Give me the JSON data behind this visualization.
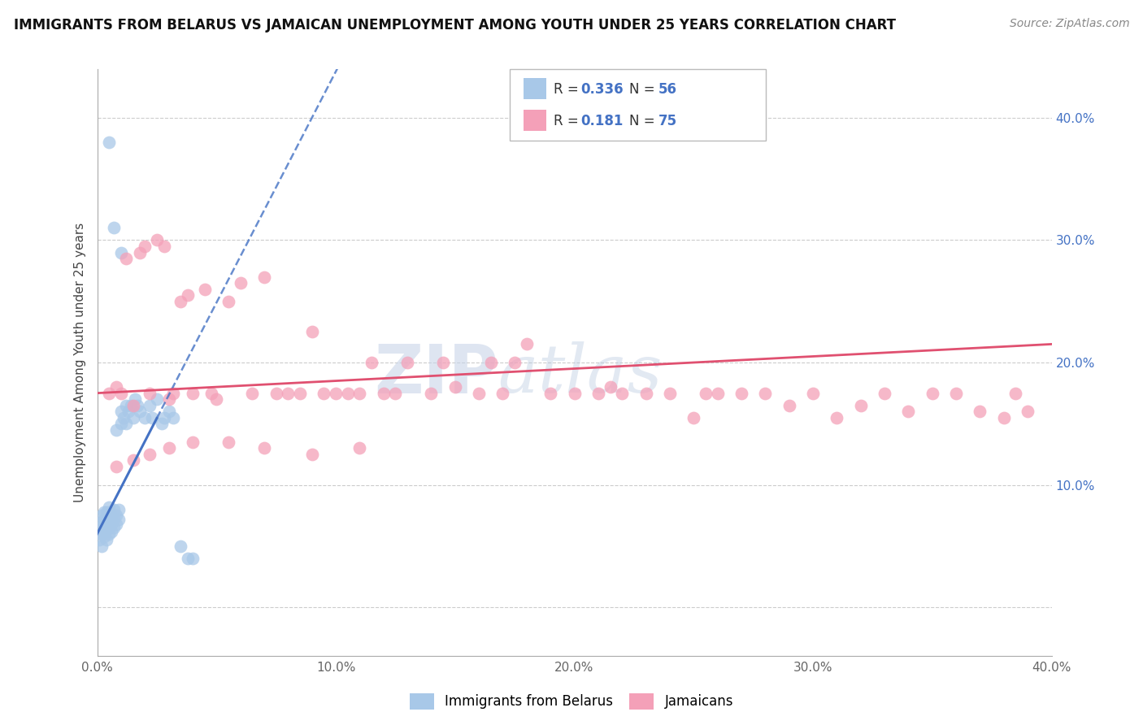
{
  "title": "IMMIGRANTS FROM BELARUS VS JAMAICAN UNEMPLOYMENT AMONG YOUTH UNDER 25 YEARS CORRELATION CHART",
  "source": "Source: ZipAtlas.com",
  "ylabel": "Unemployment Among Youth under 25 years",
  "xlim": [
    0.0,
    0.4
  ],
  "ylim": [
    -0.04,
    0.44
  ],
  "color_blue": "#a8c8e8",
  "color_pink": "#f4a0b8",
  "color_blue_line": "#4472c4",
  "color_pink_line": "#e05070",
  "watermark_zip": "ZIP",
  "watermark_atlas": "atlas",
  "belarus_x": [
    0.001,
    0.001,
    0.002,
    0.002,
    0.002,
    0.002,
    0.003,
    0.003,
    0.003,
    0.003,
    0.003,
    0.004,
    0.004,
    0.004,
    0.004,
    0.005,
    0.005,
    0.005,
    0.005,
    0.005,
    0.006,
    0.006,
    0.006,
    0.007,
    0.007,
    0.007,
    0.008,
    0.008,
    0.008,
    0.009,
    0.009,
    0.01,
    0.01,
    0.011,
    0.012,
    0.012,
    0.013,
    0.014,
    0.015,
    0.016,
    0.017,
    0.018,
    0.02,
    0.022,
    0.023,
    0.025,
    0.027,
    0.028,
    0.03,
    0.032,
    0.035,
    0.038,
    0.04,
    0.005,
    0.007,
    0.01
  ],
  "belarus_y": [
    0.055,
    0.065,
    0.06,
    0.07,
    0.075,
    0.05,
    0.058,
    0.062,
    0.068,
    0.072,
    0.078,
    0.055,
    0.063,
    0.07,
    0.078,
    0.06,
    0.065,
    0.07,
    0.078,
    0.082,
    0.062,
    0.068,
    0.075,
    0.065,
    0.072,
    0.08,
    0.068,
    0.075,
    0.145,
    0.072,
    0.08,
    0.15,
    0.16,
    0.155,
    0.165,
    0.15,
    0.16,
    0.165,
    0.155,
    0.17,
    0.165,
    0.16,
    0.155,
    0.165,
    0.155,
    0.17,
    0.15,
    0.155,
    0.16,
    0.155,
    0.05,
    0.04,
    0.04,
    0.38,
    0.31,
    0.29
  ],
  "jamaican_x": [
    0.005,
    0.008,
    0.01,
    0.012,
    0.015,
    0.018,
    0.02,
    0.022,
    0.025,
    0.028,
    0.03,
    0.032,
    0.035,
    0.038,
    0.04,
    0.045,
    0.048,
    0.05,
    0.055,
    0.06,
    0.065,
    0.07,
    0.075,
    0.08,
    0.085,
    0.09,
    0.095,
    0.1,
    0.105,
    0.11,
    0.115,
    0.12,
    0.125,
    0.13,
    0.14,
    0.145,
    0.15,
    0.16,
    0.165,
    0.17,
    0.175,
    0.18,
    0.19,
    0.2,
    0.21,
    0.215,
    0.22,
    0.23,
    0.24,
    0.25,
    0.255,
    0.26,
    0.27,
    0.28,
    0.29,
    0.3,
    0.31,
    0.32,
    0.33,
    0.34,
    0.35,
    0.36,
    0.37,
    0.38,
    0.385,
    0.39,
    0.008,
    0.015,
    0.022,
    0.03,
    0.04,
    0.055,
    0.07,
    0.09,
    0.11
  ],
  "jamaican_y": [
    0.175,
    0.18,
    0.175,
    0.285,
    0.165,
    0.29,
    0.295,
    0.175,
    0.3,
    0.295,
    0.17,
    0.175,
    0.25,
    0.255,
    0.175,
    0.26,
    0.175,
    0.17,
    0.25,
    0.265,
    0.175,
    0.27,
    0.175,
    0.175,
    0.175,
    0.225,
    0.175,
    0.175,
    0.175,
    0.175,
    0.2,
    0.175,
    0.175,
    0.2,
    0.175,
    0.2,
    0.18,
    0.175,
    0.2,
    0.175,
    0.2,
    0.215,
    0.175,
    0.175,
    0.175,
    0.18,
    0.175,
    0.175,
    0.175,
    0.155,
    0.175,
    0.175,
    0.175,
    0.175,
    0.165,
    0.175,
    0.155,
    0.165,
    0.175,
    0.16,
    0.175,
    0.175,
    0.16,
    0.155,
    0.175,
    0.16,
    0.115,
    0.12,
    0.125,
    0.13,
    0.135,
    0.135,
    0.13,
    0.125,
    0.13
  ]
}
